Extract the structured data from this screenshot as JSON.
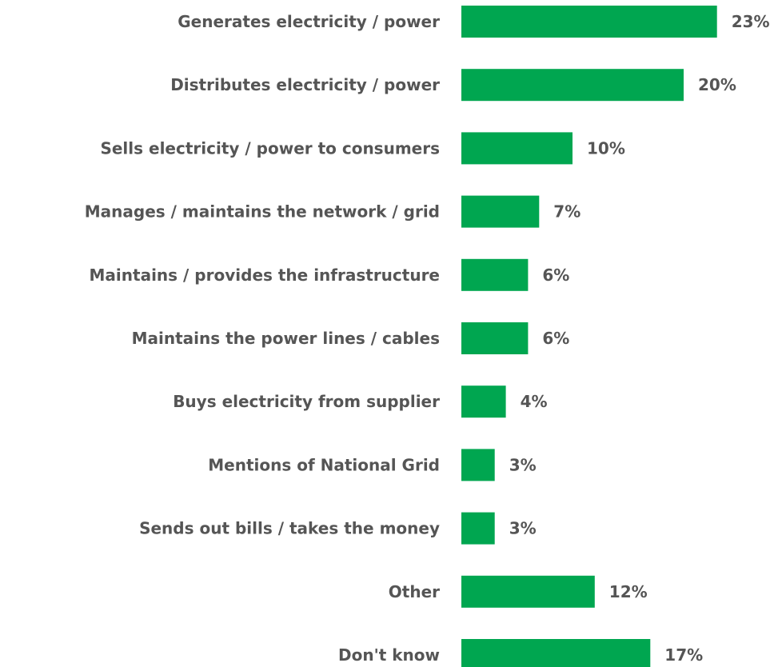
{
  "chart_data": {
    "type": "bar",
    "orientation": "horizontal",
    "categories": [
      "Generates electricity / power",
      "Distributes electricity / power",
      "Sells electricity / power to consumers",
      "Manages / maintains the network / grid",
      "Maintains / provides the infrastructure",
      "Maintains the power lines / cables",
      "Buys electricity from supplier",
      "Mentions of National Grid",
      "Sends out bills / takes the money",
      "Other",
      "Don't know"
    ],
    "values": [
      23,
      20,
      10,
      7,
      6,
      6,
      4,
      3,
      3,
      12,
      17
    ],
    "value_labels": [
      "23%",
      "20%",
      "10%",
      "7%",
      "6%",
      "6%",
      "4%",
      "3%",
      "3%",
      "12%",
      "17%"
    ],
    "unit": "%",
    "bar_color": "#00A650",
    "text_color": "#555555",
    "grid": false,
    "legend": "none"
  }
}
